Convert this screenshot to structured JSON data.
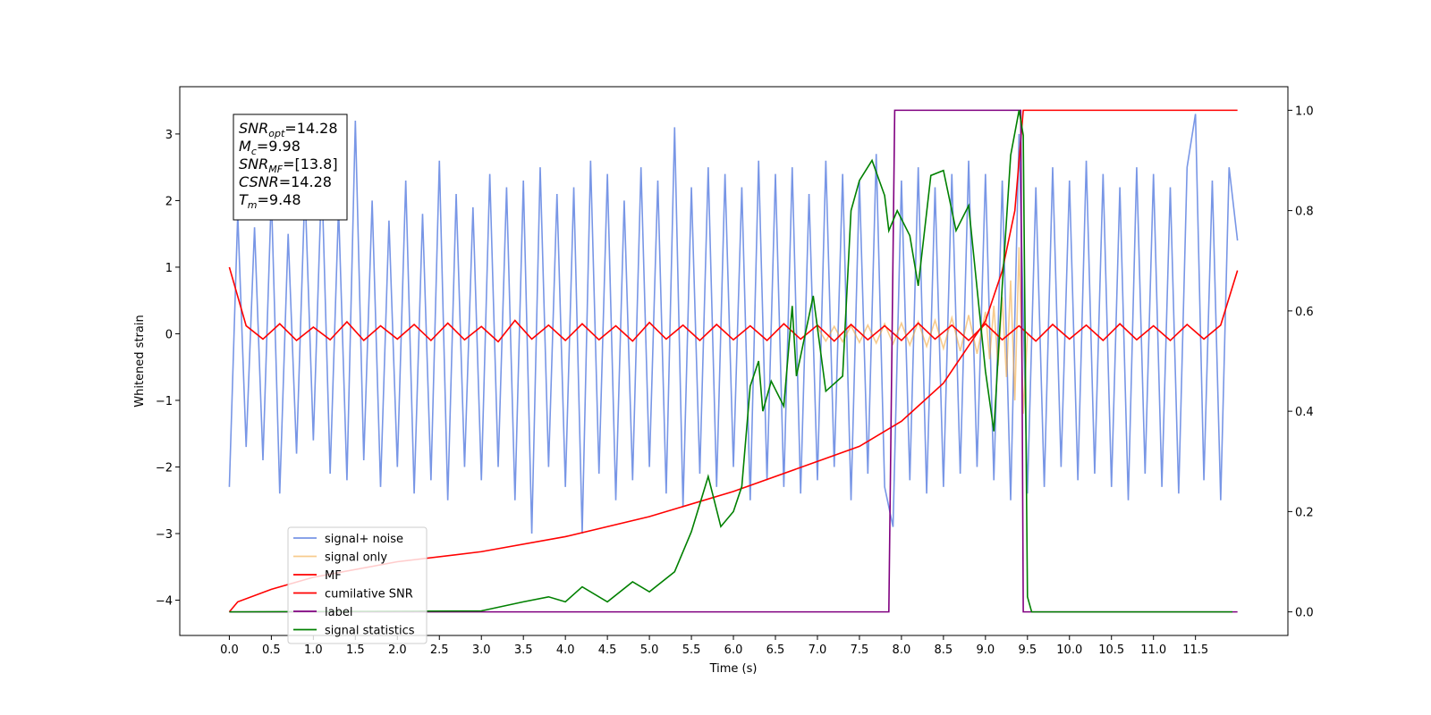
{
  "chart_data": {
    "type": "line",
    "xlabel": "Time (s)",
    "ylabel": "Whitened strain",
    "xlim": [
      -0.59,
      12.6
    ],
    "ylim": [
      -4.53,
      3.71
    ],
    "y2lim": [
      -0.047,
      1.047
    ],
    "xticks": [
      {
        "value": 0,
        "label": "0.0"
      },
      {
        "value": 0.5,
        "label": "0.5"
      },
      {
        "value": 1,
        "label": "1.0"
      },
      {
        "value": 1.5,
        "label": "1.5"
      },
      {
        "value": 2,
        "label": "2.0"
      },
      {
        "value": 2.5,
        "label": "2.5"
      },
      {
        "value": 3,
        "label": "3.0"
      },
      {
        "value": 3.5,
        "label": "3.5"
      },
      {
        "value": 4,
        "label": "4.0"
      },
      {
        "value": 4.5,
        "label": "4.5"
      },
      {
        "value": 5,
        "label": "5.0"
      },
      {
        "value": 5.5,
        "label": "5.5"
      },
      {
        "value": 6,
        "label": "6.0"
      },
      {
        "value": 6.5,
        "label": "6.5"
      },
      {
        "value": 7,
        "label": "7.0"
      },
      {
        "value": 7.5,
        "label": "7.5"
      },
      {
        "value": 8,
        "label": "8.0"
      },
      {
        "value": 8.5,
        "label": "8.5"
      },
      {
        "value": 9,
        "label": "9.0"
      },
      {
        "value": 9.5,
        "label": "9.5"
      },
      {
        "value": 10,
        "label": "10.0"
      },
      {
        "value": 10.5,
        "label": "10.5"
      },
      {
        "value": 11,
        "label": "11.0"
      },
      {
        "value": 11.5,
        "label": "11.5"
      }
    ],
    "yticks": [
      {
        "value": -4,
        "label": "−4"
      },
      {
        "value": -3,
        "label": "−3"
      },
      {
        "value": -2,
        "label": "−2"
      },
      {
        "value": -1,
        "label": "−1"
      },
      0,
      1,
      2,
      3
    ],
    "y2ticks": [
      {
        "value": 0,
        "label": "0.0"
      },
      {
        "value": 0.2,
        "label": "0.2"
      },
      {
        "value": 0.4,
        "label": "0.4"
      },
      {
        "value": 0.6,
        "label": "0.6"
      },
      {
        "value": 0.8,
        "label": "0.8"
      },
      {
        "value": 1,
        "label": "1.0"
      }
    ],
    "annotations": [
      {
        "symbol": "SNR",
        "sub": "opt",
        "value": "=14.28"
      },
      {
        "symbol": "M",
        "sub": "c",
        "value": "=9.98"
      },
      {
        "symbol": "SNR",
        "sub": "MF",
        "value": "=[13.8]"
      },
      {
        "symbol": "CSNR",
        "value": "=14.28"
      },
      {
        "symbol": "T",
        "sub": "m",
        "value": "=9.48"
      }
    ],
    "legend": "lower left",
    "series": [
      {
        "name": "signal+ noise",
        "color": "#7896e6",
        "x": [
          0,
          0.1,
          0.2,
          0.3,
          0.4,
          0.5,
          0.6,
          0.7,
          0.8,
          0.9,
          1,
          1.1,
          1.2,
          1.3,
          1.4,
          1.5,
          1.6,
          1.7,
          1.8,
          1.9,
          2,
          2.1,
          2.2,
          2.3,
          2.4,
          2.5,
          2.6,
          2.7,
          2.8,
          2.9,
          3,
          3.1,
          3.2,
          3.3,
          3.4,
          3.5,
          3.6,
          3.7,
          3.8,
          3.9,
          4,
          4.1,
          4.2,
          4.3,
          4.4,
          4.5,
          4.6,
          4.7,
          4.8,
          4.9,
          5,
          5.1,
          5.2,
          5.3,
          5.4,
          5.5,
          5.6,
          5.7,
          5.8,
          5.9,
          6,
          6.1,
          6.2,
          6.3,
          6.4,
          6.5,
          6.6,
          6.7,
          6.8,
          6.9,
          7,
          7.1,
          7.2,
          7.3,
          7.4,
          7.5,
          7.6,
          7.7,
          7.8,
          7.9,
          8,
          8.1,
          8.2,
          8.3,
          8.4,
          8.5,
          8.6,
          8.7,
          8.8,
          8.9,
          9,
          9.1,
          9.2,
          9.3,
          9.4,
          9.5,
          9.6,
          9.7,
          9.8,
          9.9,
          10,
          10.1,
          10.2,
          10.3,
          10.4,
          10.5,
          10.6,
          10.7,
          10.8,
          10.9,
          11,
          11.1,
          11.2,
          11.3,
          11.4,
          11.5,
          11.6,
          11.7,
          11.8,
          11.9,
          12
        ],
        "values": [
          -2.3,
          1.8,
          -1.7,
          1.6,
          -1.9,
          2.1,
          -2.4,
          1.5,
          -1.8,
          2.2,
          -1.6,
          2.4,
          -2.1,
          1.9,
          -2.2,
          3.2,
          -1.9,
          2.0,
          -2.3,
          1.7,
          -2.0,
          2.3,
          -2.4,
          1.8,
          -2.2,
          2.6,
          -2.5,
          2.1,
          -2.0,
          1.9,
          -2.2,
          2.4,
          -2.0,
          2.2,
          -2.5,
          2.3,
          -3.0,
          2.5,
          -2.0,
          2.1,
          -2.3,
          2.2,
          -3.0,
          2.6,
          -2.1,
          2.4,
          -2.5,
          2.0,
          -2.2,
          2.5,
          -2.0,
          2.3,
          -2.4,
          3.1,
          -2.6,
          2.2,
          -2.1,
          2.5,
          -2.3,
          2.4,
          -2.0,
          2.2,
          -2.5,
          2.6,
          -2.2,
          2.4,
          -2.3,
          2.5,
          -2.4,
          2.1,
          -2.2,
          2.6,
          -2.0,
          2.4,
          -2.5,
          2.3,
          -2.1,
          2.7,
          -2.3,
          -2.9,
          2.3,
          -2.2,
          2.5,
          -2.4,
          2.2,
          -2.3,
          2.4,
          -2.1,
          2.6,
          -2.0,
          2.4,
          -2.2,
          2.3,
          -2.5,
          3.0,
          -2.4,
          2.2,
          -2.3,
          2.5,
          -2.0,
          2.3,
          -2.2,
          2.6,
          -2.1,
          2.4,
          -2.3,
          2.2,
          -2.5,
          2.5,
          -2.1,
          2.4,
          -2.3,
          2.2,
          -2.4,
          2.5,
          3.3,
          -2.2,
          2.3,
          -2.5,
          2.5,
          1.4
        ]
      },
      {
        "name": "signal only",
        "color": "#f0a030",
        "alpha": 0.55,
        "x": [
          7,
          7.1,
          7.2,
          7.3,
          7.4,
          7.5,
          7.6,
          7.7,
          7.8,
          7.9,
          8,
          8.1,
          8.2,
          8.3,
          8.4,
          8.5,
          8.6,
          8.7,
          8.8,
          8.9,
          9,
          9.05,
          9.1,
          9.15,
          9.2,
          9.25,
          9.3,
          9.35,
          9.4,
          9.45,
          9.5
        ],
        "values": [
          0.1,
          -0.11,
          0.11,
          -0.12,
          0.12,
          -0.13,
          0.13,
          -0.14,
          0.15,
          -0.15,
          0.16,
          -0.17,
          0.18,
          -0.19,
          0.2,
          -0.22,
          0.24,
          -0.26,
          0.28,
          -0.3,
          0.33,
          -0.38,
          0.42,
          -0.48,
          0.55,
          -0.65,
          0.8,
          -1.0,
          1.3,
          -1.2,
          0
        ]
      },
      {
        "name": "MF",
        "color": "#ff0000",
        "x": [
          0,
          0.2,
          0.4,
          0.6,
          0.8,
          1,
          1.2,
          1.4,
          1.6,
          1.8,
          2,
          2.2,
          2.4,
          2.6,
          2.8,
          3,
          3.2,
          3.4,
          3.6,
          3.8,
          4,
          4.2,
          4.4,
          4.6,
          4.8,
          5,
          5.2,
          5.4,
          5.6,
          5.8,
          6,
          6.2,
          6.4,
          6.6,
          6.8,
          7,
          7.2,
          7.4,
          7.6,
          7.8,
          8,
          8.2,
          8.4,
          8.6,
          8.8,
          9,
          9.2,
          9.4,
          9.6,
          9.8,
          10,
          10.2,
          10.4,
          10.6,
          10.8,
          11,
          11.2,
          11.4,
          11.6,
          11.8,
          12
        ],
        "values": [
          1.0,
          0.12,
          -0.08,
          0.15,
          -0.1,
          0.1,
          -0.09,
          0.18,
          -0.1,
          0.12,
          -0.08,
          0.14,
          -0.1,
          0.16,
          -0.09,
          0.11,
          -0.12,
          0.2,
          -0.08,
          0.13,
          -0.1,
          0.15,
          -0.09,
          0.12,
          -0.11,
          0.17,
          -0.08,
          0.13,
          -0.1,
          0.14,
          -0.09,
          0.12,
          -0.1,
          0.15,
          -0.08,
          0.13,
          -0.11,
          0.14,
          -0.09,
          0.12,
          -0.1,
          0.16,
          -0.08,
          0.13,
          -0.1,
          0.15,
          -0.09,
          0.12,
          -0.11,
          0.14,
          -0.08,
          0.13,
          -0.1,
          0.15,
          -0.09,
          0.12,
          -0.1,
          0.14,
          -0.08,
          0.13,
          0.95
        ]
      },
      {
        "name": "cumilative SNR",
        "color": "#ff0000",
        "axis": "y2",
        "x": [
          0,
          0.1,
          0.5,
          1,
          2,
          3,
          4,
          5,
          6,
          7,
          7.5,
          8,
          8.5,
          9,
          9.2,
          9.35,
          9.45,
          12
        ],
        "values": [
          0,
          0.02,
          0.045,
          0.069,
          0.1,
          0.12,
          0.15,
          0.19,
          0.24,
          0.3,
          0.33,
          0.38,
          0.456,
          0.58,
          0.68,
          0.8,
          1.0,
          1.0
        ]
      },
      {
        "name": "label",
        "color": "#800080",
        "axis": "y2",
        "x": [
          0,
          7.85,
          7.92,
          9.42,
          9.45,
          12
        ],
        "values": [
          0,
          0,
          1,
          1,
          0,
          0
        ]
      },
      {
        "name": "signal statistics",
        "color": "#008000",
        "axis": "y2",
        "x": [
          0,
          3,
          3.5,
          3.8,
          4,
          4.2,
          4.5,
          4.8,
          5,
          5.3,
          5.5,
          5.7,
          5.85,
          6,
          6.1,
          6.2,
          6.3,
          6.35,
          6.45,
          6.6,
          6.7,
          6.75,
          6.95,
          7.1,
          7.3,
          7.4,
          7.5,
          7.65,
          7.8,
          7.85,
          7.95,
          8.1,
          8.2,
          8.35,
          8.5,
          8.65,
          8.8,
          9,
          9.1,
          9.2,
          9.3,
          9.4,
          9.45,
          9.5,
          9.55,
          11.94
        ],
        "values": [
          0,
          0.002,
          0.02,
          0.03,
          0.02,
          0.05,
          0.02,
          0.06,
          0.04,
          0.08,
          0.16,
          0.27,
          0.17,
          0.2,
          0.25,
          0.45,
          0.5,
          0.4,
          0.46,
          0.41,
          0.61,
          0.47,
          0.63,
          0.44,
          0.47,
          0.8,
          0.86,
          0.9,
          0.83,
          0.76,
          0.8,
          0.75,
          0.65,
          0.87,
          0.88,
          0.76,
          0.81,
          0.48,
          0.36,
          0.65,
          0.91,
          1.0,
          0.95,
          0.03,
          0,
          0
        ]
      }
    ]
  }
}
